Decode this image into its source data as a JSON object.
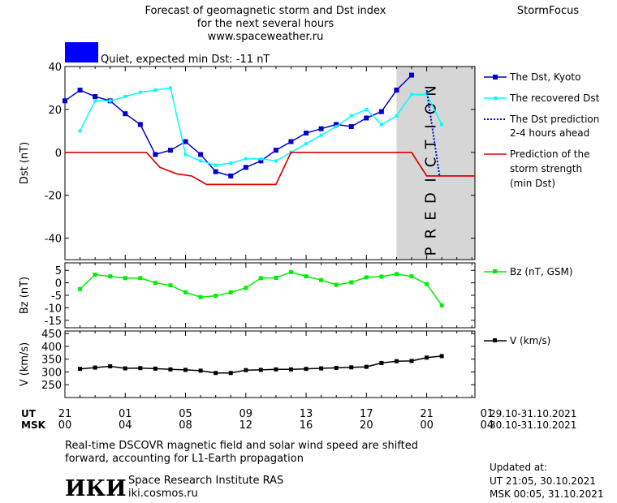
{
  "header": {
    "title_lines": [
      "Forecast of geomagnetic storm and Dst index",
      "for the next several hours",
      "www.spaceweather.ru"
    ],
    "brand": "StormFocus"
  },
  "status": {
    "text": "Quiet, expected min Dst: -11 nT",
    "color": "#0000ff"
  },
  "prediction_band_label": "PREDICTION",
  "legend": {
    "dst_kyoto": "The Dst, Kyoto",
    "recovered": "The recovered Dst",
    "prediction_line1": "The Dst prediction",
    "prediction_line2": "2-4 hours ahead",
    "strength_line1": "Prediction of the",
    "strength_line2": "storm strength",
    "strength_line3": "(min Dst)",
    "bz": "Bz (nT, GSM)",
    "v": "V (km/s)"
  },
  "time_axis": {
    "ut_label": "UT",
    "msk_label": "MSK",
    "ut_ticks": [
      "21",
      "01",
      "05",
      "09",
      "13",
      "17",
      "21",
      "01"
    ],
    "msk_ticks": [
      "00",
      "04",
      "08",
      "12",
      "16",
      "20",
      "00",
      "04"
    ],
    "ut_dates": "29.10-31.10.2021",
    "msk_dates": "30.10-31.10.2021"
  },
  "footer": {
    "note_line1": "Real-time DSCOVR magnetic field and solar wind speed are shifted",
    "note_line2": "forward, accounting for L1-Earth propagation",
    "logo_text": "ИКИ",
    "institute": "Space Research Institute RAS",
    "website": "iki.cosmos.ru",
    "updated_title": "Updated at:",
    "updated_ut": "UT   21:05, 30.10.2021",
    "updated_msk": "MSK 00:05, 31.10.2021"
  },
  "colors": {
    "dst": "#0000cc",
    "recovered": "#00ffff",
    "prediction": "#0000cc",
    "strength": "#dd0000",
    "bz": "#00ee00",
    "v": "#000000",
    "band": "#d6d6d6"
  },
  "chart_data": [
    {
      "id": "dst",
      "type": "line",
      "ylabel": "Dst (nT)",
      "ylim": [
        -50,
        40
      ],
      "yticks": [
        40,
        20,
        0,
        -20,
        -40
      ],
      "x_unit": "hours after 21 UT, 29.10.2021",
      "xlim": [
        0,
        24
      ],
      "prediction_from": 22,
      "series": [
        {
          "name": "The Dst, Kyoto",
          "x": [
            0,
            1,
            2,
            3,
            4,
            5,
            6,
            7,
            8,
            9,
            10,
            11,
            12,
            13,
            14,
            15,
            16,
            17,
            18,
            19,
            20,
            21,
            22
          ],
          "y": [
            24,
            29,
            26,
            24,
            18,
            13,
            -1,
            1,
            5,
            -1,
            -9,
            -11,
            -7,
            -4,
            1,
            5,
            9,
            11,
            13,
            12,
            16,
            19,
            29
          ]
        },
        {
          "name": "",
          "x": [
            22,
            23
          ],
          "y": [
            29,
            36
          ]
        },
        {
          "name": "The recovered Dst",
          "x": [
            1,
            2,
            3,
            4,
            5,
            6,
            7,
            8,
            9,
            10,
            11,
            12,
            13,
            14,
            15,
            16,
            17,
            18,
            19,
            20,
            21,
            22,
            23,
            24,
            25
          ],
          "y": [
            10,
            24,
            24,
            26,
            28,
            29,
            30,
            -1,
            -4,
            -6,
            -5,
            -3,
            -3,
            -4,
            0,
            4,
            8,
            12,
            17,
            20,
            13,
            17,
            27,
            27,
            13
          ]
        },
        {
          "name": "The Dst prediction 2-4 hours ahead",
          "x": [
            24,
            24.85
          ],
          "y": [
            29,
            -11
          ]
        },
        {
          "name": "Prediction of the storm strength (min Dst)",
          "x": [
            0,
            5.4,
            6.3,
            7.4,
            8.4,
            9.4,
            14.0,
            15.0,
            23.0,
            24.0,
            27.2
          ],
          "y": [
            0,
            0,
            -7,
            -10,
            -11,
            -15,
            -15,
            0,
            0,
            -11,
            -11
          ]
        }
      ]
    },
    {
      "id": "bz",
      "type": "line",
      "ylabel": "Bz (nT)",
      "ylim": [
        -18,
        8
      ],
      "yticks": [
        5,
        0,
        -5,
        -10,
        -15
      ],
      "series": [
        {
          "name": "Bz (nT, GSM)",
          "x": [
            1,
            2,
            3,
            4,
            5,
            6,
            7,
            8,
            9,
            10,
            11,
            12,
            13,
            14,
            15,
            16,
            17,
            18,
            19,
            20,
            21,
            22,
            23,
            24,
            25
          ],
          "y": [
            -2.5,
            3.3,
            2.6,
            1.9,
            1.9,
            0,
            -1,
            -3.8,
            -5.7,
            -5.2,
            -3.8,
            -2,
            1.9,
            2,
            4.3,
            2.6,
            1.1,
            -0.8,
            0.2,
            2.2,
            2.5,
            3.5,
            2.6,
            -0.5,
            -9
          ]
        }
      ]
    },
    {
      "id": "v",
      "type": "line",
      "ylabel": "V (km/s)",
      "ylim": [
        200,
        460
      ],
      "yticks": [
        450,
        400,
        350,
        300,
        250
      ],
      "series": [
        {
          "name": "V (km/s)",
          "x": [
            1,
            2,
            3,
            4,
            5,
            6,
            7,
            8,
            9,
            10,
            11,
            12,
            13,
            14,
            15,
            16,
            17,
            18,
            19,
            20,
            21,
            22,
            23,
            24,
            25
          ],
          "y": [
            312,
            317,
            322,
            314,
            315,
            313,
            310,
            308,
            305,
            296,
            296,
            307,
            308,
            310,
            310,
            312,
            314,
            316,
            318,
            320,
            335,
            342,
            343,
            356,
            362
          ]
        }
      ]
    }
  ]
}
